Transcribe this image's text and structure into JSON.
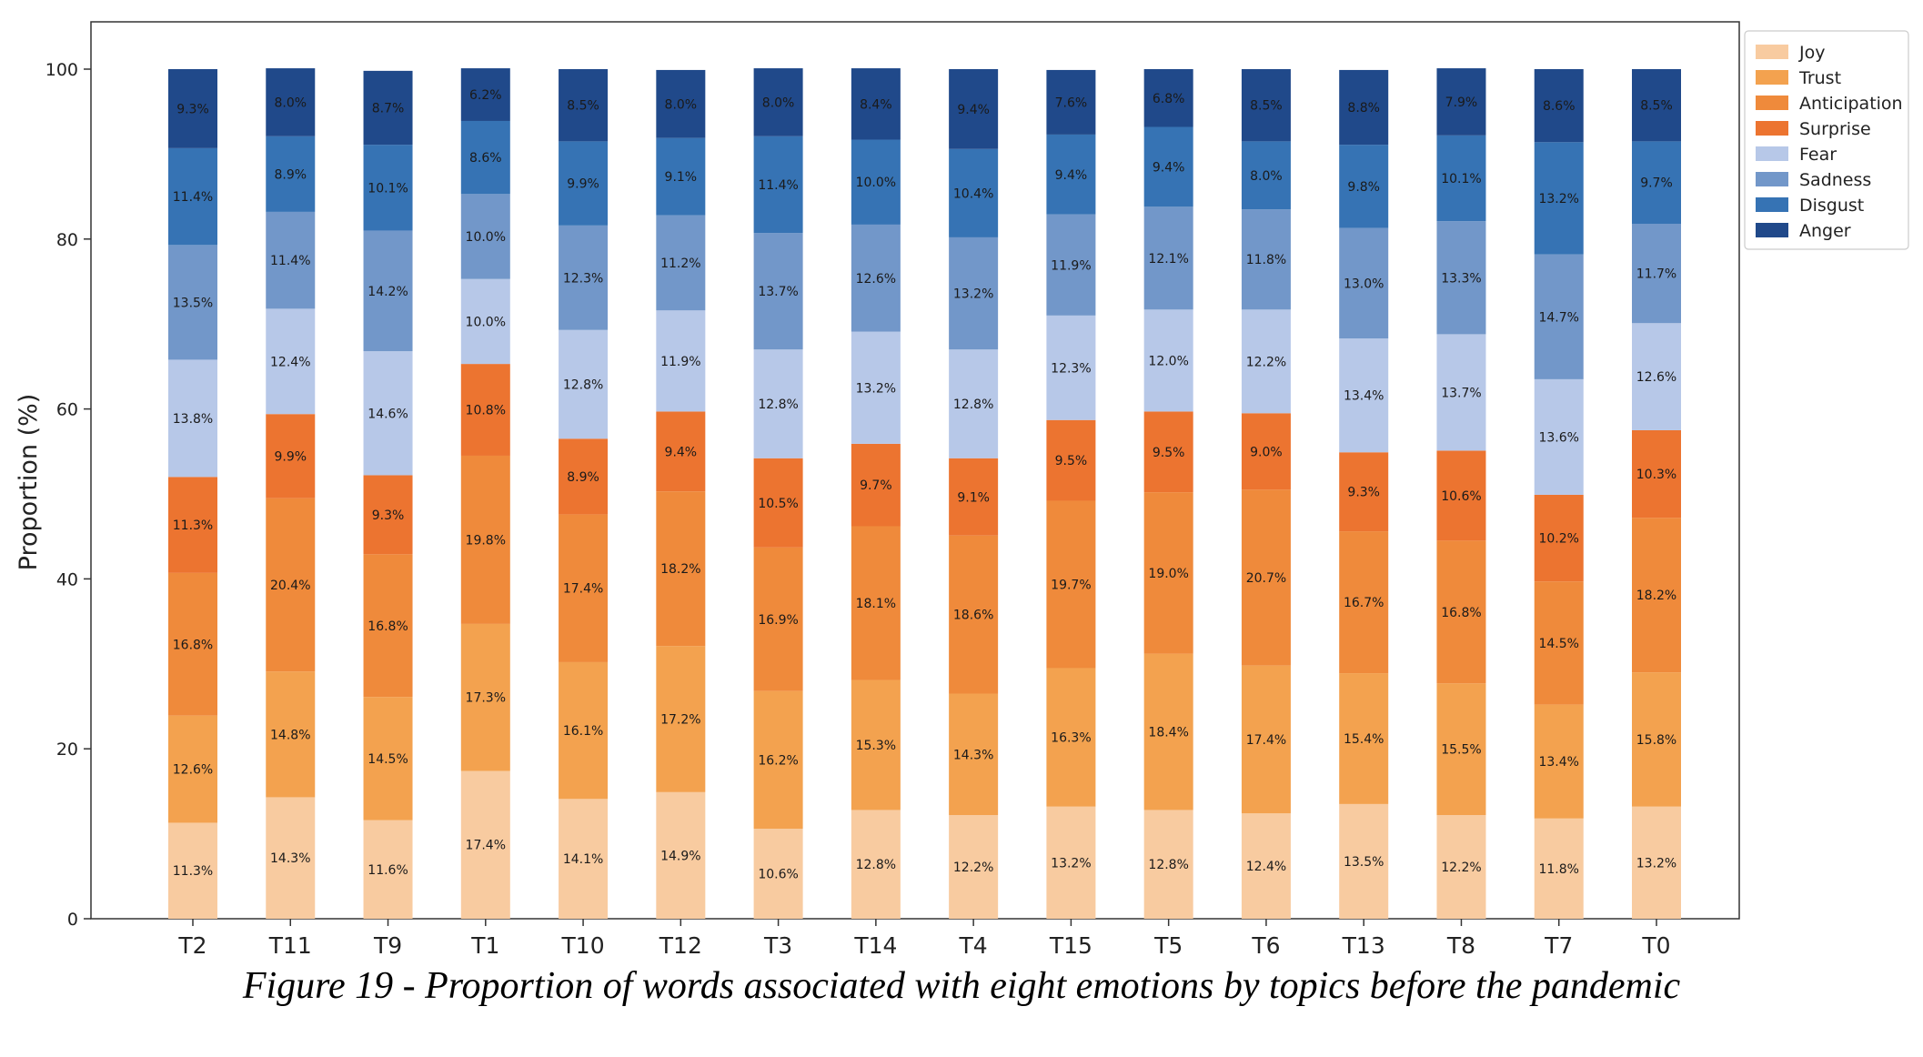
{
  "caption": "Figure 19 - Proportion of words associated with eight emotions by topics before the pandemic",
  "chart_data": {
    "type": "bar",
    "stacked": true,
    "ylabel": "Proportion (%)",
    "xlabel": "",
    "ylim": [
      0,
      100
    ],
    "yticks": [
      0,
      20,
      40,
      60,
      80,
      100
    ],
    "legend_position": "upper right, outside plot",
    "grid": false,
    "categories": [
      "T2",
      "T11",
      "T9",
      "T1",
      "T10",
      "T12",
      "T3",
      "T14",
      "T4",
      "T15",
      "T5",
      "T6",
      "T13",
      "T8",
      "T7",
      "T0"
    ],
    "series": [
      {
        "name": "Joy",
        "color": "#f8cba0",
        "values": [
          11.3,
          14.3,
          11.6,
          17.4,
          14.1,
          14.9,
          10.6,
          12.8,
          12.2,
          13.2,
          12.8,
          12.4,
          13.5,
          12.2,
          11.8,
          13.2
        ]
      },
      {
        "name": "Trust",
        "color": "#f3a24f",
        "values": [
          12.6,
          14.8,
          14.5,
          17.3,
          16.1,
          17.2,
          16.2,
          15.3,
          14.3,
          16.3,
          18.4,
          17.4,
          15.4,
          15.5,
          13.4,
          15.8
        ]
      },
      {
        "name": "Anticipation",
        "color": "#ef8a3b",
        "values": [
          16.8,
          20.4,
          16.8,
          19.8,
          17.4,
          18.2,
          16.9,
          18.1,
          18.6,
          19.7,
          19.0,
          20.7,
          16.7,
          16.8,
          14.5,
          18.2
        ]
      },
      {
        "name": "Surprise",
        "color": "#ec7430",
        "values": [
          11.3,
          9.9,
          9.3,
          10.8,
          8.9,
          9.4,
          10.5,
          9.7,
          9.1,
          9.5,
          9.5,
          9.0,
          9.3,
          10.6,
          10.2,
          10.3
        ]
      },
      {
        "name": "Fear",
        "color": "#b7c8e8",
        "values": [
          13.8,
          12.4,
          14.6,
          10.0,
          12.8,
          11.9,
          12.8,
          13.2,
          12.8,
          12.3,
          12.0,
          12.2,
          13.4,
          13.7,
          13.6,
          12.6
        ]
      },
      {
        "name": "Sadness",
        "color": "#7297c9",
        "values": [
          13.5,
          11.4,
          14.2,
          10.0,
          12.3,
          11.2,
          13.7,
          12.6,
          13.2,
          11.9,
          12.1,
          11.8,
          13.0,
          13.3,
          14.7,
          11.7
        ]
      },
      {
        "name": "Disgust",
        "color": "#3673b4",
        "values": [
          11.4,
          8.9,
          10.1,
          8.6,
          9.9,
          9.1,
          11.4,
          10.0,
          10.4,
          9.4,
          9.4,
          8.0,
          9.8,
          10.1,
          13.2,
          9.7
        ]
      },
      {
        "name": "Anger",
        "color": "#20498a",
        "values": [
          9.3,
          8.0,
          8.7,
          6.2,
          8.5,
          8.0,
          8.0,
          8.4,
          9.4,
          7.6,
          6.8,
          8.5,
          8.8,
          7.9,
          8.6,
          8.5
        ]
      }
    ]
  }
}
